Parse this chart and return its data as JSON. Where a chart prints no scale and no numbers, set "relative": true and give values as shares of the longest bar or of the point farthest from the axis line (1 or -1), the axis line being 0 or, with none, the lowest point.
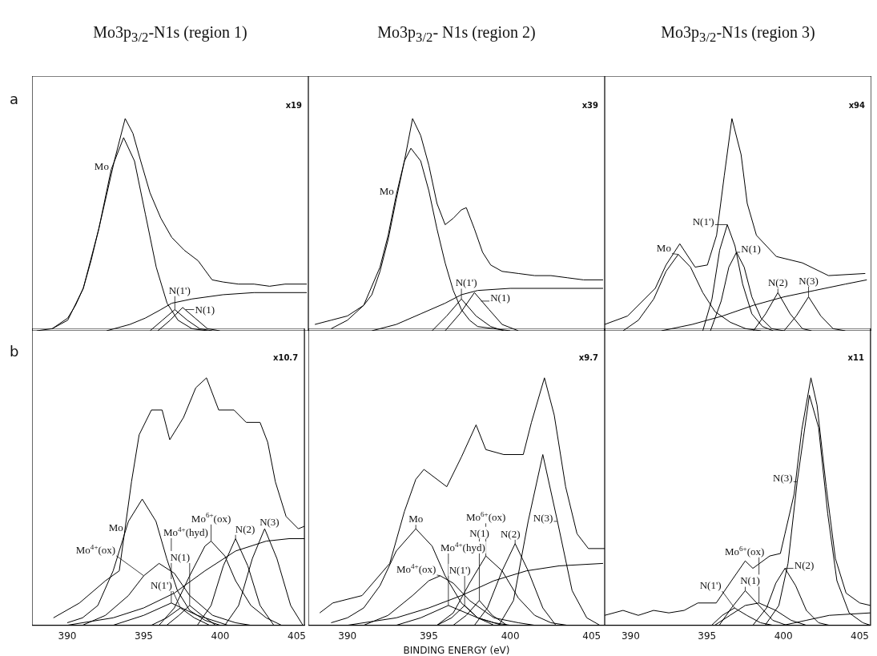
{
  "chart_data": [
    {
      "type": "line",
      "title": "Mo3p$_{3/2}$-N1s (region 1)",
      "ylabel": "a",
      "relative": true,
      "xlim": [
        387.7,
        405.5
      ],
      "xticks": [
        390,
        395,
        400,
        405
      ],
      "tick_labels": false,
      "annotations": [
        "x19",
        {
          "text": "Mo",
          "x": 392.8,
          "y": 0.76
        },
        {
          "text": "N(1')",
          "x": 396.9,
          "y": 0.1
        },
        {
          "text": "N(1)",
          "x": 397.6,
          "y": 0.1
        }
      ],
      "series": [
        {
          "color": "#000000",
          "x": [
            388,
            389,
            390,
            390.5,
            391,
            391.5,
            392,
            392.5,
            393,
            393.7,
            394.2,
            394.7,
            395.3,
            396,
            396.7,
            397.5,
            398.4,
            399.3,
            400,
            401,
            402,
            403,
            404,
            405.4
          ],
          "values": [
            0,
            0.01,
            0.06,
            0.12,
            0.2,
            0.33,
            0.48,
            0.64,
            0.8,
            1,
            0.93,
            0.8,
            0.65,
            0.53,
            0.44,
            0.38,
            0.33,
            0.24,
            0.23,
            0.22,
            0.22,
            0.21,
            0.22,
            0.22
          ]
        },
        {
          "color": "#000000",
          "x": [
            389,
            390,
            391,
            392,
            392.8,
            393.6,
            394.3,
            395,
            395.7,
            396.4,
            397.1,
            398,
            399
          ],
          "values": [
            0.01,
            0.05,
            0.2,
            0.48,
            0.76,
            0.91,
            0.8,
            0.55,
            0.3,
            0.13,
            0.05,
            0.01,
            0
          ]
        },
        {
          "color": "#000000",
          "x": [
            392.5,
            394,
            395,
            396,
            396.7,
            398,
            400,
            402,
            405.4
          ],
          "values": [
            0,
            0.03,
            0.06,
            0.1,
            0.13,
            0.15,
            0.17,
            0.18,
            0.18
          ]
        },
        {
          "color": "#000000",
          "x": [
            395.3,
            396.1,
            396.9,
            397.7,
            398.5,
            399.3
          ],
          "values": [
            0,
            0.05,
            0.1,
            0.05,
            0.01,
            0
          ]
        },
        {
          "color": "#000000",
          "x": [
            395.8,
            396.6,
            397.4,
            398.2,
            399,
            399.8
          ],
          "values": [
            0,
            0.05,
            0.11,
            0.06,
            0.01,
            0
          ]
        }
      ]
    },
    {
      "type": "line",
      "title": "Mo3p$_{3/2}$- N1s (region 2)",
      "relative": true,
      "xlim": [
        387.6,
        405.8
      ],
      "xticks": [
        390,
        395,
        400,
        405
      ],
      "tick_labels": false,
      "annotations": [
        "x39",
        {
          "text": "Mo",
          "x": 393,
          "y": 0.64
        },
        {
          "text": "N(1')",
          "x": 397,
          "y": 0.15
        },
        {
          "text": "N(1)",
          "x": 398.2,
          "y": 0.14
        }
      ],
      "series": [
        {
          "color": "#000000",
          "x": [
            388,
            389,
            390,
            391,
            391.5,
            392,
            392.5,
            393,
            393.5,
            394,
            394.5,
            395,
            395.5,
            396,
            396.5,
            397,
            397.3,
            397.8,
            398.3,
            398.8,
            399.5,
            400.5,
            401.5,
            402.5,
            403.5,
            404.5,
            405.7
          ],
          "values": [
            0.03,
            0.05,
            0.07,
            0.12,
            0.17,
            0.28,
            0.43,
            0.62,
            0.8,
            1,
            0.92,
            0.78,
            0.6,
            0.5,
            0.53,
            0.57,
            0.58,
            0.48,
            0.37,
            0.31,
            0.28,
            0.27,
            0.26,
            0.26,
            0.25,
            0.24,
            0.24
          ]
        },
        {
          "color": "#000000",
          "x": [
            389,
            390,
            391,
            392,
            392.5,
            393,
            393.5,
            393.9,
            394.5,
            395,
            395.5,
            396,
            396.5,
            397,
            397.5,
            398,
            399,
            400
          ],
          "values": [
            0.01,
            0.05,
            0.12,
            0.3,
            0.45,
            0.64,
            0.8,
            0.86,
            0.8,
            0.66,
            0.48,
            0.32,
            0.19,
            0.1,
            0.05,
            0.02,
            0.01,
            0
          ]
        },
        {
          "color": "#000000",
          "x": [
            391.5,
            393,
            394.5,
            396,
            397,
            398,
            400,
            405.7
          ],
          "values": [
            0,
            0.03,
            0.08,
            0.13,
            0.17,
            0.19,
            0.2,
            0.2
          ]
        },
        {
          "color": "#000000",
          "x": [
            395.2,
            396.1,
            397,
            397.9,
            398.8,
            399.6
          ],
          "values": [
            0,
            0.07,
            0.15,
            0.07,
            0.02,
            0
          ]
        },
        {
          "color": "#000000",
          "x": [
            396,
            396.9,
            397.8,
            398.7,
            399.5,
            400.5
          ],
          "values": [
            0,
            0.08,
            0.18,
            0.1,
            0.03,
            0
          ]
        }
      ]
    },
    {
      "type": "line",
      "title": "Mo3p$_{3/2}$-N1s (region 3)",
      "relative": true,
      "xlim": [
        388.3,
        405.7
      ],
      "xticks": [
        390,
        395,
        400,
        405
      ],
      "tick_labels": false,
      "annotations": [
        "x94",
        {
          "text": "Mo",
          "x": 393.1,
          "y": 0.36
        },
        {
          "text": "N(1')",
          "x": 396.3,
          "y": 0.5
        },
        {
          "text": "N(1)",
          "x": 396.9,
          "y": 0.37
        },
        {
          "text": "N(2)",
          "x": 399.6,
          "y": 0.18
        },
        {
          "text": "N(3)",
          "x": 401.6,
          "y": 0.16
        }
      ],
      "series": [
        {
          "color": "#000000",
          "x": [
            388.3,
            389.8,
            391.6,
            392.3,
            393.2,
            394.2,
            395,
            395.6,
            396.1,
            396.6,
            397.2,
            397.6,
            398.2,
            399.5,
            401.2,
            402.9,
            405.3
          ],
          "values": [
            0.03,
            0.07,
            0.2,
            0.31,
            0.41,
            0.3,
            0.31,
            0.45,
            0.73,
            1,
            0.83,
            0.6,
            0.45,
            0.35,
            0.32,
            0.26,
            0.27
          ]
        },
        {
          "color": "#000000",
          "x": [
            389.5,
            390.5,
            391.5,
            392.3,
            393.1,
            393.9,
            394.7,
            395.5,
            396.5,
            397.5,
            398.5
          ],
          "values": [
            0,
            0.05,
            0.15,
            0.28,
            0.36,
            0.3,
            0.18,
            0.09,
            0.04,
            0.01,
            0
          ]
        },
        {
          "color": "#000000",
          "x": [
            394.7,
            395.3,
            395.8,
            396.3,
            396.8,
            397.3,
            397.9,
            398.6,
            399.3
          ],
          "values": [
            0,
            0.15,
            0.38,
            0.5,
            0.4,
            0.22,
            0.08,
            0.02,
            0
          ]
        },
        {
          "color": "#000000",
          "x": [
            395.2,
            395.9,
            396.4,
            396.9,
            397.4,
            397.9,
            398.5,
            399.2,
            400
          ],
          "values": [
            0,
            0.14,
            0.3,
            0.37,
            0.3,
            0.16,
            0.06,
            0.01,
            0
          ]
        },
        {
          "color": "#000000",
          "x": [
            398,
            398.8,
            399.6,
            400.4,
            401.2,
            401.8
          ],
          "values": [
            0,
            0.08,
            0.18,
            0.08,
            0.01,
            0
          ]
        },
        {
          "color": "#000000",
          "x": [
            400,
            400.8,
            401.6,
            402.4,
            403.2,
            404
          ],
          "values": [
            0,
            0.07,
            0.16,
            0.07,
            0.01,
            0
          ]
        },
        {
          "color": "#000000",
          "x": [
            392,
            394,
            396,
            398,
            400,
            402,
            404,
            405.4
          ],
          "values": [
            0,
            0.03,
            0.07,
            0.12,
            0.16,
            0.19,
            0.22,
            0.24
          ]
        }
      ]
    },
    {
      "type": "line",
      "ylabel": "b",
      "relative": true,
      "xlim": [
        387.7,
        405.5
      ],
      "xticks": [
        390,
        395,
        400,
        405
      ],
      "tick_labels": "x",
      "annotations": [
        "x10.7",
        {
          "text": "Mo",
          "x": 393.5,
          "y": 0.38
        },
        {
          "text": "Mo$^{4+}$(ox)",
          "x": 395,
          "y": 0.2
        },
        {
          "text": "Mo$^{4+}$(hyd)",
          "x": 396.8,
          "y": 0.09
        },
        {
          "text": "N(1')",
          "x": 397.4,
          "y": 0.07
        },
        {
          "text": "N(1)",
          "x": 398,
          "y": 0.08
        },
        {
          "text": "Mo$^{6+}$(ox)",
          "x": 399.4,
          "y": 0.34
        },
        {
          "text": "N(2)",
          "x": 401,
          "y": 0.35
        },
        {
          "text": "N(3)",
          "x": 402.9,
          "y": 0.39
        }
      ],
      "series": [
        {
          "color": "#000000",
          "x": [
            389.1,
            390.8,
            392.5,
            393.4,
            394.2,
            394.7,
            395.5,
            396.2,
            396.7,
            397.6,
            398.4,
            399.1,
            399.9,
            400.9,
            401.7,
            402.6,
            403.1,
            403.6,
            404.3,
            405.1,
            405.5
          ],
          "values": [
            0.03,
            0.09,
            0.18,
            0.22,
            0.58,
            0.77,
            0.87,
            0.87,
            0.75,
            0.84,
            0.96,
            1,
            0.87,
            0.87,
            0.82,
            0.82,
            0.74,
            0.58,
            0.44,
            0.39,
            0.4
          ]
        },
        {
          "color": "#000000",
          "x": [
            390,
            391,
            392,
            393,
            394,
            394.9,
            395.8,
            396.5,
            397.2,
            398,
            399,
            400
          ],
          "values": [
            0.01,
            0.03,
            0.08,
            0.22,
            0.42,
            0.51,
            0.42,
            0.27,
            0.14,
            0.06,
            0.02,
            0
          ]
        },
        {
          "color": "#000000",
          "x": [
            391,
            392.5,
            394,
            395,
            396,
            397,
            398,
            399.5,
            401,
            402
          ],
          "values": [
            0,
            0.04,
            0.12,
            0.2,
            0.25,
            0.21,
            0.12,
            0.04,
            0.01,
            0
          ]
        },
        {
          "color": "#000000",
          "x": [
            393,
            395,
            396.8,
            398.5,
            400.5
          ],
          "values": [
            0,
            0.04,
            0.09,
            0.04,
            0
          ]
        },
        {
          "color": "#000000",
          "x": [
            395.5,
            396.5,
            397.4,
            398.3,
            399.3
          ],
          "values": [
            0,
            0.03,
            0.07,
            0.03,
            0
          ]
        },
        {
          "color": "#000000",
          "x": [
            396.5,
            397.3,
            398,
            398.8,
            399.7
          ],
          "values": [
            0,
            0.04,
            0.08,
            0.04,
            0
          ]
        },
        {
          "color": "#000000",
          "x": [
            396,
            397,
            398,
            399,
            399.4,
            400.3,
            401,
            402,
            403,
            404
          ],
          "values": [
            0,
            0.07,
            0.2,
            0.32,
            0.34,
            0.28,
            0.18,
            0.08,
            0.03,
            0
          ]
        },
        {
          "color": "#000000",
          "x": [
            398.5,
            399.4,
            400.2,
            401,
            401.8,
            402.6,
            403.5
          ],
          "values": [
            0,
            0.08,
            0.24,
            0.35,
            0.24,
            0.08,
            0
          ]
        },
        {
          "color": "#000000",
          "x": [
            400.3,
            401.2,
            402.1,
            402.9,
            403.7,
            404.6,
            405.4
          ],
          "values": [
            0,
            0.08,
            0.27,
            0.39,
            0.27,
            0.08,
            0
          ]
        },
        {
          "color": "#000000",
          "x": [
            390,
            393,
            395,
            397,
            399,
            401,
            403,
            404.5,
            405.5
          ],
          "values": [
            0,
            0.03,
            0.07,
            0.13,
            0.22,
            0.3,
            0.34,
            0.35,
            0.35
          ]
        }
      ]
    },
    {
      "type": "line",
      "xlabel": "BINDING ENERGY (eV)",
      "relative": true,
      "xlim": [
        387.6,
        405.8
      ],
      "xticks": [
        390,
        395,
        400,
        405
      ],
      "tick_labels": "x",
      "annotations": [
        "x9.7",
        {
          "text": "Mo",
          "x": 394.2,
          "y": 0.39
        },
        {
          "text": "Mo$^{4+}$(ox)",
          "x": 395.7,
          "y": 0.2
        },
        {
          "text": "Mo$^{4+}$(hyd)",
          "x": 396.2,
          "y": 0.08
        },
        {
          "text": "N(1')",
          "x": 397.2,
          "y": 0.08
        },
        {
          "text": "N(1)",
          "x": 398.1,
          "y": 0.1
        },
        {
          "text": "Mo$^{6+}$(ox)",
          "x": 398.5,
          "y": 0.28
        },
        {
          "text": "N(2)",
          "x": 400.3,
          "y": 0.33
        },
        {
          "text": "N(3)",
          "x": 402.9,
          "y": 0.42
        }
      ],
      "series": [
        {
          "color": "#000000",
          "x": [
            388.3,
            389.1,
            390.9,
            392.6,
            393.5,
            394.2,
            394.7,
            396.1,
            397,
            397.9,
            398.5,
            399.6,
            400.8,
            401.3,
            402.1,
            402.7,
            403.4,
            404.1,
            404.8,
            405.8
          ],
          "values": [
            0.05,
            0.09,
            0.12,
            0.25,
            0.46,
            0.59,
            0.63,
            0.56,
            0.68,
            0.81,
            0.71,
            0.69,
            0.69,
            0.82,
            1,
            0.85,
            0.56,
            0.37,
            0.31,
            0.31
          ]
        },
        {
          "color": "#000000",
          "x": [
            389,
            390,
            391,
            392,
            393,
            394.2,
            395.2,
            396,
            397,
            398,
            399,
            400
          ],
          "values": [
            0.01,
            0.03,
            0.07,
            0.16,
            0.3,
            0.39,
            0.32,
            0.2,
            0.09,
            0.03,
            0.01,
            0
          ]
        },
        {
          "color": "#000000",
          "x": [
            391,
            392.5,
            394,
            395,
            395.7,
            396.5,
            397.5,
            399,
            400.5,
            401.5
          ],
          "values": [
            0,
            0.04,
            0.12,
            0.18,
            0.2,
            0.17,
            0.1,
            0.03,
            0.01,
            0
          ]
        },
        {
          "color": "#000000",
          "x": [
            393,
            394.5,
            396.2,
            398,
            399.5
          ],
          "values": [
            0,
            0.03,
            0.08,
            0.03,
            0
          ]
        },
        {
          "color": "#000000",
          "x": [
            395.5,
            396.4,
            397.2,
            398,
            399
          ],
          "values": [
            0,
            0.03,
            0.08,
            0.03,
            0
          ]
        },
        {
          "color": "#000000",
          "x": [
            396.5,
            397.3,
            398.1,
            398.9,
            399.8
          ],
          "values": [
            0,
            0.04,
            0.1,
            0.04,
            0
          ]
        },
        {
          "color": "#000000",
          "x": [
            395.5,
            396.5,
            397.5,
            398.5,
            399.5,
            400.5,
            401.5,
            402.5,
            403.5
          ],
          "values": [
            0,
            0.05,
            0.17,
            0.28,
            0.22,
            0.11,
            0.04,
            0.01,
            0
          ]
        },
        {
          "color": "#000000",
          "x": [
            397.8,
            398.6,
            399.5,
            400.3,
            401.1,
            402,
            402.8
          ],
          "values": [
            0,
            0.07,
            0.22,
            0.33,
            0.22,
            0.07,
            0
          ]
        },
        {
          "color": "#000000",
          "x": [
            399.3,
            400.2,
            401.1,
            402,
            402.9,
            403.8,
            404.7,
            405.5
          ],
          "values": [
            0,
            0.1,
            0.42,
            0.69,
            0.42,
            0.14,
            0.03,
            0
          ]
        },
        {
          "color": "#000000",
          "x": [
            390,
            393,
            395,
            397,
            399,
            401,
            403,
            405.7
          ],
          "values": [
            0,
            0.03,
            0.07,
            0.12,
            0.18,
            0.22,
            0.24,
            0.25
          ]
        }
      ]
    },
    {
      "type": "line",
      "relative": true,
      "xlim": [
        388.3,
        405.7
      ],
      "xticks": [
        390,
        395,
        400,
        405
      ],
      "tick_labels": "x",
      "annotations": [
        "x11",
        {
          "text": "N(3)",
          "x": 400.9,
          "y": 0.58
        },
        {
          "text": "N(2)",
          "x": 400.1,
          "y": 0.23
        },
        {
          "text": "Mo$^{6+}$(ox)",
          "x": 398.4,
          "y": 0.09
        },
        {
          "text": "N(1)",
          "x": 397.5,
          "y": 0.14
        },
        {
          "text": "N(1')",
          "x": 396.8,
          "y": 0.07
        }
      ],
      "series": [
        {
          "color": "#000000",
          "x": [
            388.3,
            389.5,
            390.5,
            391.5,
            392.5,
            393.5,
            394.4,
            395.6,
            396.6,
            397.5,
            398,
            399.1,
            399.8,
            400.1,
            400.7,
            401.2,
            401.8,
            402.2,
            402.8,
            403.4,
            404.1,
            405,
            405.7
          ],
          "values": [
            0.04,
            0.06,
            0.04,
            0.06,
            0.05,
            0.06,
            0.09,
            0.09,
            0.18,
            0.26,
            0.23,
            0.28,
            0.29,
            0.37,
            0.53,
            0.79,
            1,
            0.89,
            0.56,
            0.27,
            0.13,
            0.09,
            0.08
          ]
        },
        {
          "color": "#000000",
          "x": [
            398.8,
            399.7,
            400.3,
            400.9,
            401.7,
            402.3,
            402.9,
            403.5,
            404.3,
            405.2,
            405.7
          ],
          "values": [
            0,
            0.08,
            0.25,
            0.58,
            0.93,
            0.8,
            0.45,
            0.18,
            0.05,
            0.01,
            0
          ]
        },
        {
          "color": "#000000",
          "x": [
            398,
            398.9,
            399.5,
            400.1,
            400.8,
            401.5,
            402.3,
            403
          ],
          "values": [
            0,
            0.07,
            0.17,
            0.23,
            0.16,
            0.06,
            0.01,
            0
          ]
        },
        {
          "color": "#000000",
          "x": [
            395.5,
            396.5,
            397.5,
            398.4,
            399.5,
            400.5,
            401.5
          ],
          "values": [
            0,
            0.04,
            0.08,
            0.09,
            0.06,
            0.02,
            0
          ]
        },
        {
          "color": "#000000",
          "x": [
            395.8,
            396.6,
            397.5,
            398.4,
            399.3,
            400.2
          ],
          "values": [
            0,
            0.07,
            0.14,
            0.08,
            0.02,
            0
          ]
        },
        {
          "color": "#000000",
          "x": [
            395.3,
            396,
            396.8,
            397.6,
            398.5,
            399.3
          ],
          "values": [
            0,
            0.04,
            0.07,
            0.04,
            0.01,
            0
          ]
        },
        {
          "color": "#000000",
          "x": [
            400,
            401.5,
            403,
            405.7
          ],
          "values": [
            0,
            0.02,
            0.04,
            0.05
          ]
        }
      ]
    }
  ]
}
